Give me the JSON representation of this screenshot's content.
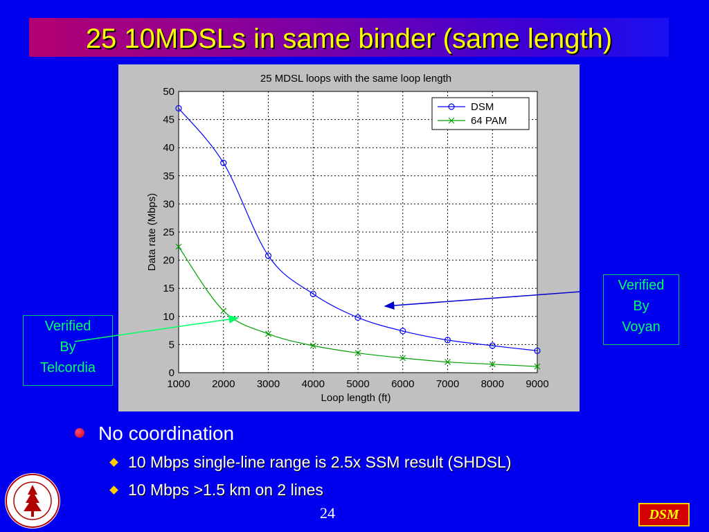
{
  "slide": {
    "title": "25 10MDSLs in same binder (same length)",
    "page_number": "24",
    "badge": "DSM",
    "seal_text": "LELAND STANFORD JUNIOR UNIVERSITY"
  },
  "callouts": {
    "telcordia": [
      "Verified",
      "By",
      "Telcordia"
    ],
    "voyan": [
      "Verified",
      "By",
      "Voyan"
    ]
  },
  "bullets": {
    "main": "No coordination",
    "sub": [
      "10 Mbps single-line range is 2.5x SSM result (SHDSL)",
      "10 Mbps >1.5 km on 2 lines"
    ]
  },
  "colors": {
    "background": "#0000f0",
    "title": "#ffff00",
    "callout": "#00ff66",
    "dsm_series": "#0000ff",
    "pam_series": "#00a000"
  },
  "chart_data": {
    "type": "line",
    "title": "25 MDSL loops with the same loop length",
    "xlabel": "Loop length (ft)",
    "ylabel": "Data rate (Mbps)",
    "x": [
      1000,
      2000,
      3000,
      4000,
      5000,
      6000,
      7000,
      8000,
      9000
    ],
    "xlim": [
      1000,
      9000
    ],
    "ylim": [
      0,
      50
    ],
    "xticks": [
      1000,
      2000,
      3000,
      4000,
      5000,
      6000,
      7000,
      8000,
      9000
    ],
    "yticks": [
      0,
      5,
      10,
      15,
      20,
      25,
      30,
      35,
      40,
      45,
      50
    ],
    "grid": true,
    "legend_position": "top-right",
    "series": [
      {
        "name": "DSM",
        "marker": "o",
        "color": "#0000ff",
        "values": [
          47,
          37.3,
          20.8,
          14,
          9.8,
          7.4,
          5.8,
          4.8,
          3.9
        ]
      },
      {
        "name": "64 PAM",
        "marker": "x",
        "color": "#00a000",
        "values": [
          22.4,
          11,
          6.9,
          4.8,
          3.5,
          2.6,
          1.9,
          1.5,
          1.1
        ]
      }
    ]
  }
}
